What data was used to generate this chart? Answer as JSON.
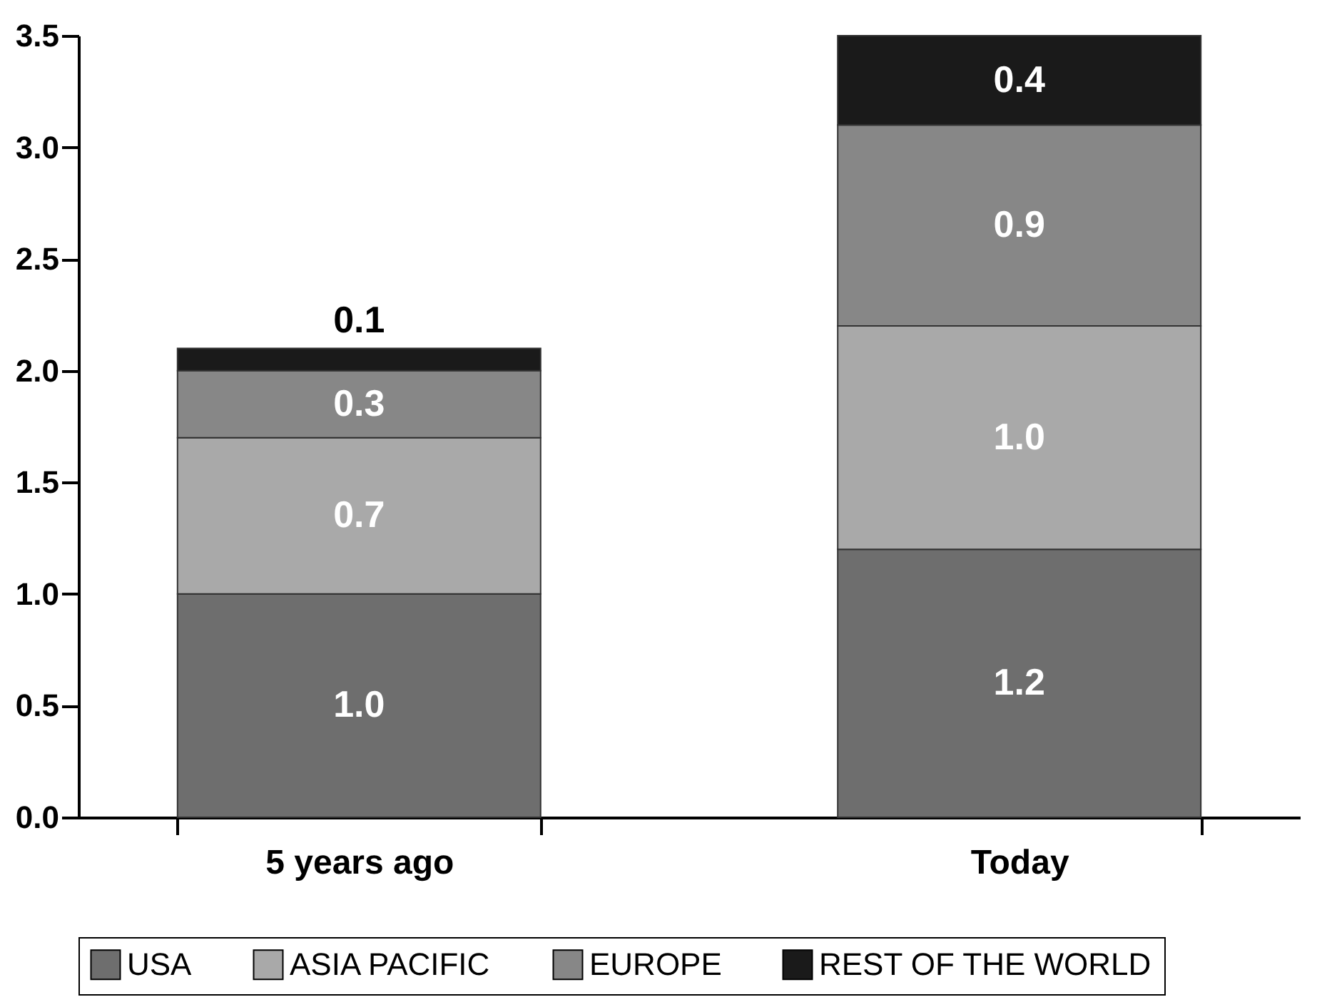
{
  "chart_data": {
    "type": "bar",
    "stacked": true,
    "categories": [
      "5 years ago",
      "Today"
    ],
    "series": [
      {
        "name": "USA",
        "color": "#6e6e6e",
        "values": [
          1.0,
          1.2
        ],
        "value_labels": [
          "1.0",
          "1.2"
        ]
      },
      {
        "name": "ASIA PACIFIC",
        "color": "#a9a9a9",
        "values": [
          0.7,
          1.0
        ],
        "value_labels": [
          "0.7",
          "1.0"
        ]
      },
      {
        "name": "EUROPE",
        "color": "#878787",
        "values": [
          0.3,
          0.9
        ],
        "value_labels": [
          "0.3",
          "0.9"
        ]
      },
      {
        "name": "REST OF THE WORLD",
        "color": "#1a1a1a",
        "values": [
          0.1,
          0.4
        ],
        "value_labels": [
          "0.1",
          "0.4"
        ]
      }
    ],
    "ylim": [
      0,
      3.5
    ],
    "yticks": [
      {
        "value": 0,
        "label": "0.0"
      },
      {
        "value": 0.5,
        "label": "0.5"
      },
      {
        "value": 1,
        "label": "1.0"
      },
      {
        "value": 1.5,
        "label": "1.5"
      },
      {
        "value": 2,
        "label": "2.0"
      },
      {
        "value": 2.5,
        "label": "2.5"
      },
      {
        "value": 3,
        "label": "3.0"
      },
      {
        "value": 3.5,
        "label": "3.5"
      }
    ],
    "grid": false,
    "legend": "bottom"
  }
}
